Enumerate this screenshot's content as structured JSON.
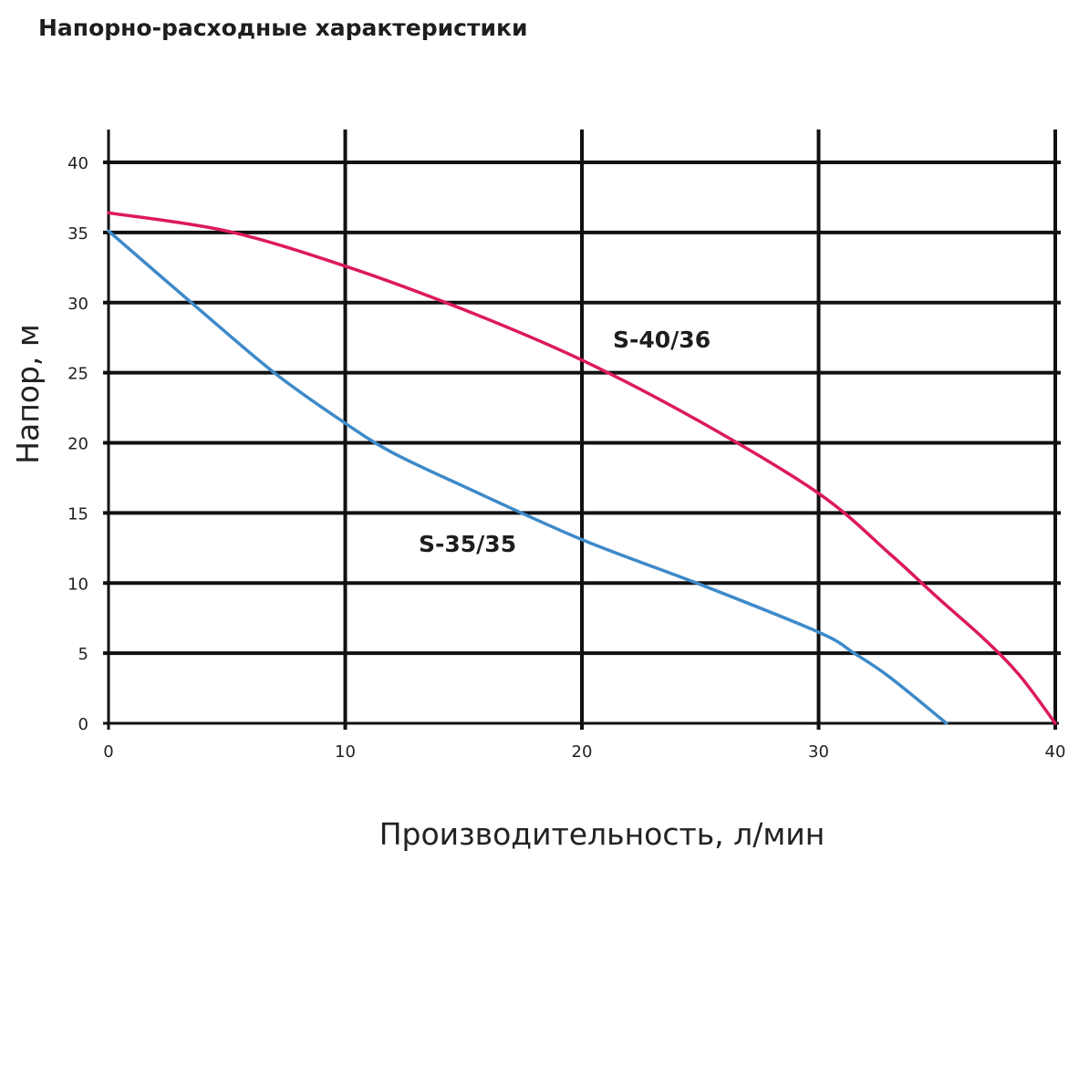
{
  "chart_data": {
    "type": "line",
    "title": "Напорно-расходные характеристики",
    "xlabel": "Производительность, л/мин",
    "ylabel": "Напор, м",
    "xlim": [
      0,
      40
    ],
    "ylim": [
      0,
      40
    ],
    "x_ticks": [
      "0",
      "10",
      "20",
      "30",
      "40"
    ],
    "y_ticks": [
      "0",
      "5",
      "10",
      "15",
      "20",
      "25",
      "30",
      "35",
      "40"
    ],
    "grid": true,
    "series": [
      {
        "name": "S-40/36",
        "color": "#dc1a5a",
        "x": [
          0,
          5,
          10,
          15,
          20,
          25,
          30,
          33,
          35,
          37,
          38.5,
          40
        ],
        "y": [
          36.4,
          35.1,
          32.6,
          29.5,
          25.9,
          21.5,
          16.4,
          12.1,
          9.0,
          6.0,
          3.4,
          0
        ]
      },
      {
        "name": "S-35/35",
        "color": "#3e8ac9",
        "x": [
          0,
          3.5,
          7,
          10,
          12,
          15,
          20,
          25,
          30,
          31.5,
          33,
          35.4
        ],
        "y": [
          35.1,
          30.0,
          25.0,
          21.4,
          19.3,
          16.9,
          13.1,
          9.9,
          6.5,
          5.0,
          3.3,
          0
        ]
      }
    ]
  }
}
